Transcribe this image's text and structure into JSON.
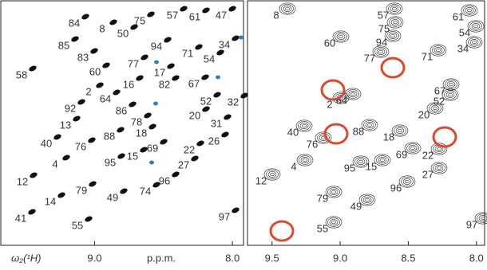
{
  "panels": [
    {
      "xlim": [
        9.68,
        7.92
      ],
      "xticks": [
        {
          "value": 9,
          "label": "9.0"
        },
        {
          "value": 8,
          "label": "8.0"
        }
      ],
      "peaks": [
        "84",
        "8",
        "75",
        "57",
        "61",
        "47",
        "50",
        "34",
        "85",
        "94",
        "71",
        "58",
        "83",
        "54",
        "77",
        "17",
        "60",
        "2",
        "16",
        "82",
        "67",
        "64",
        "52",
        "32",
        "92",
        "86",
        "78",
        "20",
        "13",
        "18",
        "31",
        "40",
        "76",
        "88",
        "69",
        "22",
        "26",
        "15",
        "95",
        "4",
        "27",
        "12",
        "74",
        "96",
        "79",
        "49",
        "14",
        "41",
        "97",
        "55"
      ],
      "axis_label": "ω₂(¹H)",
      "units": "p.p.m."
    },
    {
      "xlim": [
        9.68,
        7.94
      ],
      "xticks": [
        {
          "value": 9.5,
          "label": "9.5"
        },
        {
          "value": 9,
          "label": "9.0"
        },
        {
          "value": 8.5,
          "label": "8.5"
        },
        {
          "value": 8,
          "label": "8.0"
        }
      ],
      "peaks": [
        "8",
        "57",
        "61",
        "75",
        "54",
        "94",
        "34",
        "60",
        "71",
        "77",
        "67",
        "2",
        "64",
        "52",
        "20",
        "88",
        "40",
        "76",
        "18",
        "69",
        "22",
        "95",
        "15",
        "4",
        "27",
        "12",
        "96",
        "79",
        "49",
        "97",
        "55"
      ]
    }
  ]
}
